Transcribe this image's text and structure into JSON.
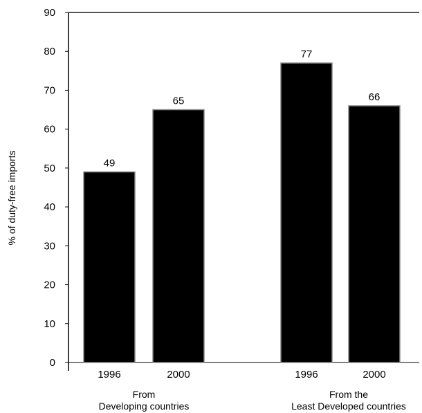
{
  "chart_data": {
    "type": "bar",
    "ylabel": "% of duty-free imports",
    "ylim": [
      0,
      90
    ],
    "yticks": [
      0,
      10,
      20,
      30,
      40,
      50,
      60,
      70,
      80,
      90
    ],
    "grid": false,
    "bar_color": "#000000",
    "groups": [
      {
        "label_lines": [
          "From",
          "Developing countries"
        ],
        "categories": [
          "1996",
          "2000"
        ],
        "values": [
          49,
          65
        ],
        "data_labels": [
          "49",
          "65"
        ]
      },
      {
        "label_lines": [
          "From the",
          "Least Developed countries"
        ],
        "categories": [
          "1996",
          "2000"
        ],
        "values": [
          77,
          66
        ],
        "data_labels": [
          "77",
          "66"
        ]
      }
    ]
  }
}
